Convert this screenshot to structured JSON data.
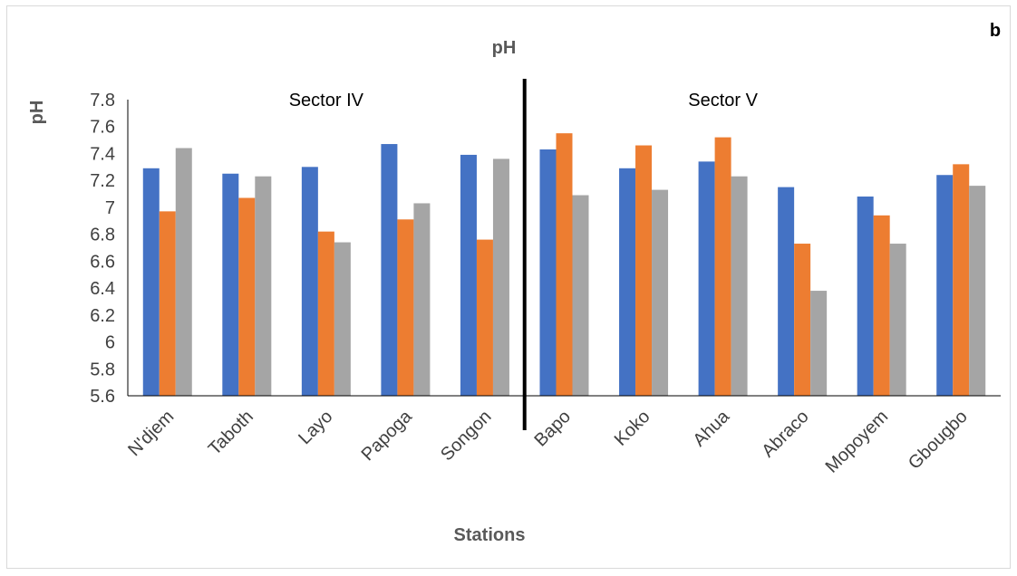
{
  "chart_data": {
    "type": "bar",
    "title": "pH",
    "panel_label": "b",
    "xlabel": "Stations",
    "ylabel": "pH",
    "ylim": [
      5.6,
      7.8
    ],
    "yticks": [
      "7.8",
      "7.6",
      "7.4",
      "7.2",
      "7",
      "6.8",
      "6.6",
      "6.4",
      "6.2",
      "6",
      "5.8",
      "5.6"
    ],
    "categories": [
      "N'djem",
      "Taboth",
      "Layo",
      "Papoga",
      "Songon",
      "Bapo",
      "Koko",
      "Ahua",
      "Abraco",
      "Mopoyem",
      "Gbougbo"
    ],
    "series": [
      {
        "color": "#4472c4",
        "values": [
          7.29,
          7.25,
          7.3,
          7.47,
          7.39,
          7.43,
          7.29,
          7.34,
          7.15,
          7.08,
          7.24
        ]
      },
      {
        "color": "#ed7d31",
        "values": [
          6.97,
          7.07,
          6.82,
          6.91,
          6.76,
          7.55,
          7.46,
          7.52,
          6.73,
          6.94,
          7.32
        ]
      },
      {
        "color": "#a5a5a5",
        "values": [
          7.44,
          7.23,
          6.74,
          7.03,
          7.36,
          7.09,
          7.13,
          7.23,
          6.38,
          6.73,
          7.16
        ]
      }
    ],
    "annotations": [
      {
        "text": "Sector IV",
        "category": "Layo"
      },
      {
        "text": "Sector V",
        "category": "Ahua"
      }
    ],
    "divider_after_category": "Songon",
    "grid": false,
    "legend": "none"
  }
}
